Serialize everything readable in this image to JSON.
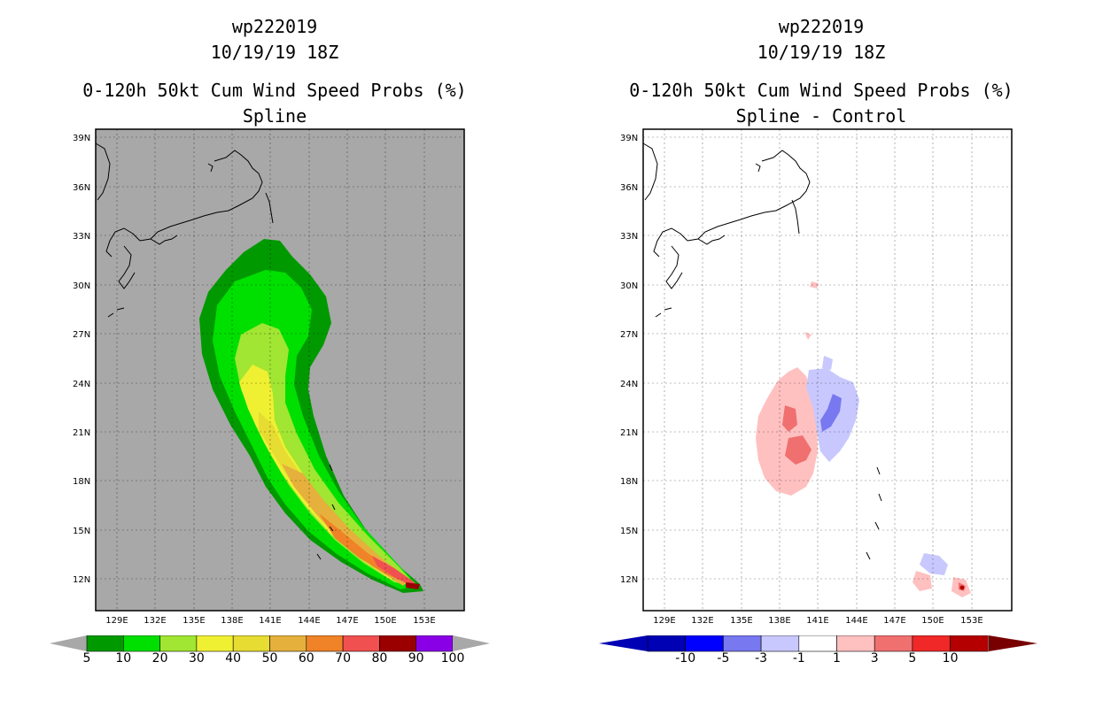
{
  "left": {
    "title_lines": [
      "wp222019",
      "10/19/19 18Z",
      "0-120h 50kt Cum Wind Speed Probs (%)",
      "Spline"
    ],
    "colorbar": {
      "labels": [
        "5",
        "10",
        "20",
        "30",
        "40",
        "50",
        "60",
        "70",
        "80",
        "90",
        "100"
      ],
      "colors": [
        "#009a00",
        "#00e000",
        "#a0e632",
        "#f0f032",
        "#e6dc32",
        "#e6b03c",
        "#f08228",
        "#f05050",
        "#9a0000",
        "#8a00e6"
      ],
      "end_color": "#a8a8a8"
    },
    "background_color": "#a8a8a8"
  },
  "right": {
    "title_lines": [
      "wp222019",
      "10/19/19 18Z",
      "0-120h 50kt Cum Wind Speed Probs (%)",
      "Spline - Control"
    ],
    "colorbar": {
      "labels": [
        "-10",
        "-5",
        "-3",
        "-1",
        "1",
        "3",
        "5",
        "10"
      ],
      "colors": [
        "#0000b4",
        "#0000ff",
        "#7878f0",
        "#c8c8ff",
        "#ffffff",
        "#ffc0c0",
        "#f07070",
        "#f02828",
        "#b40000"
      ],
      "low_end_color": "#0000b4",
      "high_end_color": "#780000"
    },
    "background_color": "#ffffff"
  },
  "axes": {
    "lon_labels": [
      "129E",
      "132E",
      "135E",
      "138E",
      "141E",
      "144E",
      "147E",
      "150E",
      "153E"
    ],
    "lat_labels": [
      "39N",
      "36N",
      "33N",
      "30N",
      "27N",
      "24N",
      "21N",
      "18N",
      "15N",
      "12N"
    ]
  }
}
